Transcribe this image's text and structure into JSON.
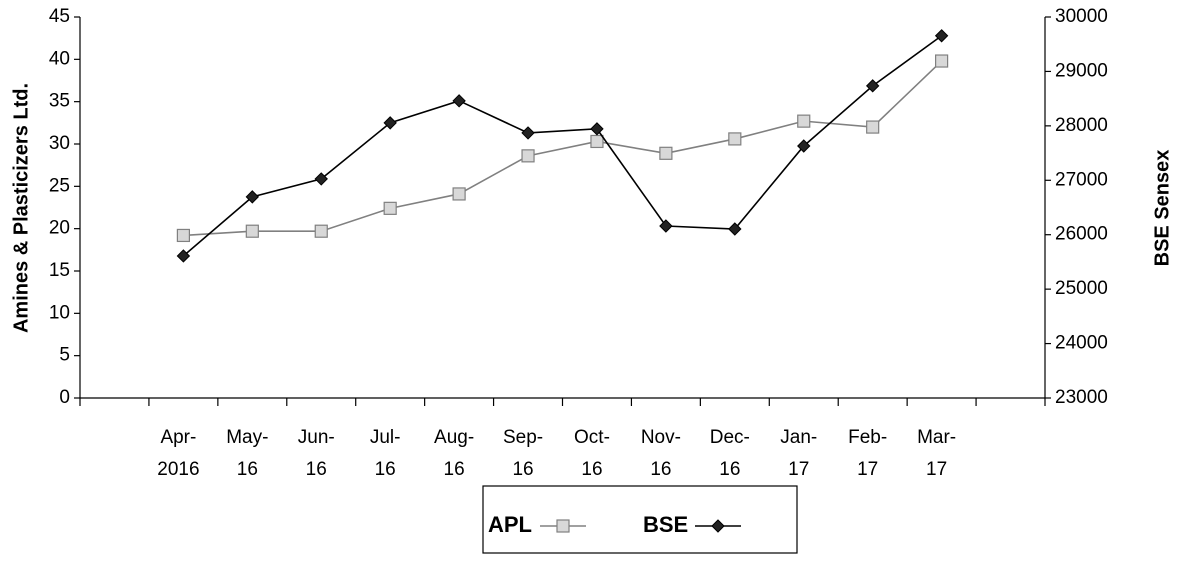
{
  "chart_data": {
    "type": "line",
    "y_label": "Amines & Plasticizers Ltd.",
    "y2_label": "BSE Sensex",
    "categories": [
      "Apr-2016",
      "May-16",
      "Jun-16",
      "Jul-16",
      "Aug-16",
      "Sep-16",
      "Oct-16",
      "Nov-16",
      "Dec-16",
      "Jan-17",
      "Feb-17",
      "Mar-17"
    ],
    "series": [
      {
        "name": "APL",
        "color": "#808080",
        "marker": "square",
        "values": [
          19.2,
          19.7,
          19.7,
          22.4,
          24.1,
          28.6,
          30.3,
          28.9,
          30.6,
          32.7,
          32.0,
          39.8
        ]
      },
      {
        "name": "BSE",
        "color": "#000000",
        "marker": "diamond",
        "axis": "y2",
        "values": [
          25610,
          26695,
          27025,
          28055,
          28460,
          27870,
          27945,
          26160,
          26105,
          27630,
          28735,
          29655
        ]
      }
    ],
    "ylim": [
      0,
      45
    ],
    "yticks": [
      0,
      5,
      10,
      15,
      20,
      25,
      30,
      35,
      40,
      45
    ],
    "y2lim": [
      23000,
      30000
    ],
    "y2ticks": [
      23000,
      24000,
      25000,
      26000,
      27000,
      28000,
      29000,
      30000
    ],
    "grid": false,
    "legend": "bottom"
  }
}
